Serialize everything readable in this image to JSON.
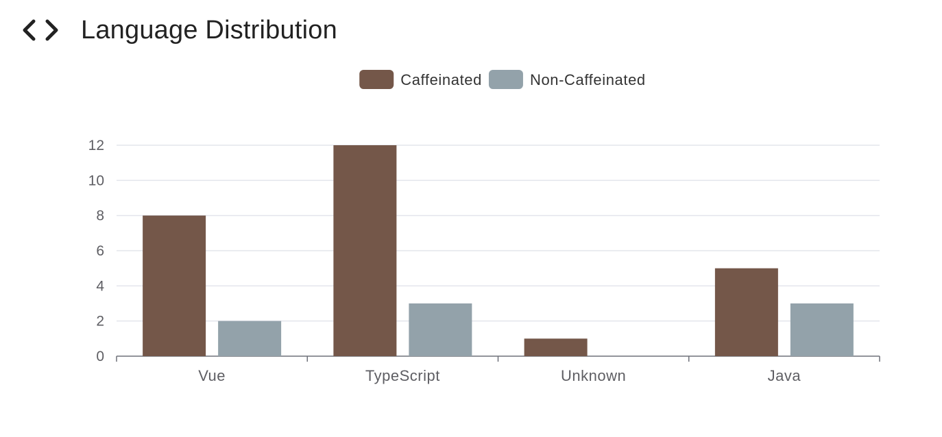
{
  "header": {
    "title": "Language Distribution",
    "icon": "code-icon"
  },
  "colors": {
    "caffeinated": "#745749",
    "non_caffeinated": "#93a2aa",
    "gridline": "#e3e5ec",
    "axis": "#6e7079",
    "tick_label": "#5e5e63"
  },
  "chart_data": {
    "type": "bar",
    "title": "Language Distribution",
    "categories": [
      "Vue",
      "TypeScript",
      "Unknown",
      "Java"
    ],
    "series": [
      {
        "name": "Caffeinated",
        "values": [
          8,
          12,
          1,
          5
        ]
      },
      {
        "name": "Non-Caffeinated",
        "values": [
          2,
          3,
          0,
          3
        ]
      }
    ],
    "yticks": [
      0,
      2,
      4,
      6,
      8,
      10,
      12
    ],
    "ylim": [
      0,
      12
    ],
    "xlabel": "",
    "ylabel": "",
    "grid": true,
    "legend_position": "top-center"
  }
}
